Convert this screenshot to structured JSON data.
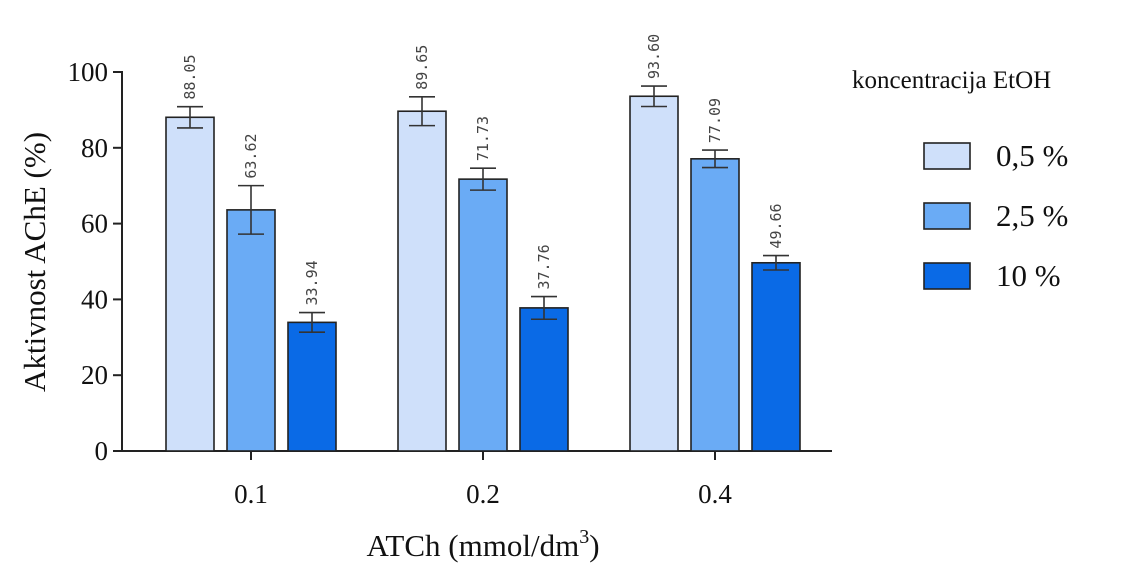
{
  "chart_data": {
    "type": "bar",
    "categories": [
      "0.1",
      "0.2",
      "0.4"
    ],
    "series": [
      {
        "name": "0,5 %",
        "values": [
          88.05,
          89.65,
          93.6
        ],
        "errors": [
          2.8,
          3.8,
          2.7
        ],
        "color": "#cfe0fa"
      },
      {
        "name": "2,5 %",
        "values": [
          63.62,
          71.73,
          77.09
        ],
        "errors": [
          6.4,
          2.9,
          2.3
        ],
        "color": "#6aabf5"
      },
      {
        "name": "10 %",
        "values": [
          33.94,
          37.76,
          49.66
        ],
        "errors": [
          2.6,
          3.0,
          1.9
        ],
        "color": "#0a6ae6"
      }
    ],
    "data_labels": [
      [
        "88.05",
        "89.65",
        "93.60"
      ],
      [
        "63.62",
        "71.73",
        "77.09"
      ],
      [
        "33.94",
        "37.76",
        "49.66"
      ]
    ],
    "ylabel": "Aktivnost AChE (%)",
    "xlabel": "ATCh (mmol/dm",
    "xlabel_superscript": "3",
    "xlabel_suffix": ")",
    "ylim": [
      0,
      100
    ],
    "yticks": [
      "0",
      "20",
      "40",
      "60",
      "80",
      "100"
    ],
    "legend": {
      "title": "koncentracija EtOH",
      "placement": "right"
    },
    "grid": false
  }
}
